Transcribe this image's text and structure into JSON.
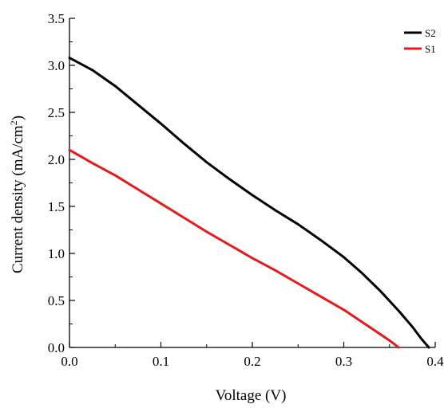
{
  "chart_data": {
    "type": "line",
    "xlabel": "Voltage (V)",
    "ylabel_main": "Current density (mA/cm",
    "ylabel_sup": "2",
    "ylabel_close": ")",
    "xlim": [
      0.0,
      0.4
    ],
    "ylim": [
      0.0,
      3.5
    ],
    "x_ticks": [
      0.0,
      0.1,
      0.2,
      0.3,
      0.4
    ],
    "x_tick_labels": [
      "0.0",
      "0.1",
      "0.2",
      "0.3",
      "0.4"
    ],
    "y_ticks": [
      0.0,
      0.5,
      1.0,
      1.5,
      2.0,
      2.5,
      3.0,
      3.5
    ],
    "y_tick_labels": [
      "0.0",
      "0.5",
      "1.0",
      "1.5",
      "2.0",
      "2.5",
      "3.0",
      "3.5"
    ],
    "grid": false,
    "legend_position": "top-right",
    "series": [
      {
        "name": "S2",
        "color": "#000000",
        "x": [
          0.0,
          0.025,
          0.05,
          0.075,
          0.1,
          0.125,
          0.15,
          0.175,
          0.2,
          0.225,
          0.25,
          0.275,
          0.3,
          0.32,
          0.34,
          0.36,
          0.375,
          0.385,
          0.393
        ],
        "y": [
          3.08,
          2.95,
          2.78,
          2.58,
          2.38,
          2.17,
          1.97,
          1.79,
          1.62,
          1.46,
          1.31,
          1.14,
          0.96,
          0.79,
          0.6,
          0.39,
          0.22,
          0.09,
          0.0
        ]
      },
      {
        "name": "S1",
        "color": "#e8191c",
        "x": [
          0.0,
          0.025,
          0.05,
          0.075,
          0.1,
          0.125,
          0.15,
          0.175,
          0.2,
          0.225,
          0.25,
          0.275,
          0.3,
          0.32,
          0.34,
          0.352,
          0.36
        ],
        "y": [
          2.1,
          1.96,
          1.83,
          1.68,
          1.53,
          1.38,
          1.23,
          1.09,
          0.95,
          0.82,
          0.68,
          0.54,
          0.4,
          0.27,
          0.14,
          0.06,
          0.0
        ]
      }
    ]
  }
}
